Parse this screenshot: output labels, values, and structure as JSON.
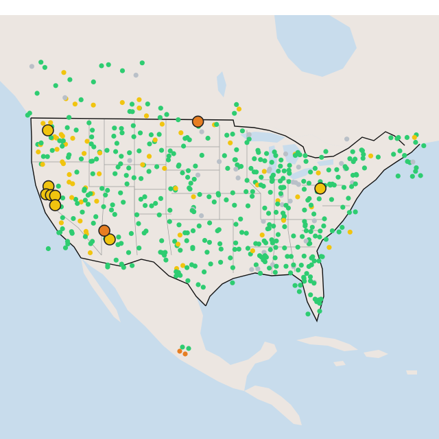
{
  "map": {
    "theme": "light-basemap",
    "colors": {
      "ocean": "#c8dcec",
      "land": "#ece6e1",
      "border": "#111111",
      "good": "#2ecc71",
      "moderate": "#f1c40f",
      "unhealthy_sensitive": "#e67e22",
      "no_data": "#b9c0c8"
    },
    "large_markers": [
      {
        "category": "moderate",
        "lon": -122.0,
        "lat": 47.3
      },
      {
        "category": "moderate",
        "lon": -121.9,
        "lat": 39.6
      },
      {
        "category": "moderate",
        "lon": -122.3,
        "lat": 38.5
      },
      {
        "category": "moderate",
        "lon": -121.5,
        "lat": 38.4
      },
      {
        "category": "moderate",
        "lon": -120.8,
        "lat": 38.3
      },
      {
        "category": "moderate",
        "lon": -120.8,
        "lat": 37.0
      },
      {
        "category": "moderate",
        "lon": -111.7,
        "lat": 32.3
      },
      {
        "category": "moderate",
        "lon": -76.6,
        "lat": 39.3
      },
      {
        "category": "unhealthy_sensitive",
        "lon": -112.6,
        "lat": 33.5
      },
      {
        "category": "unhealthy_sensitive",
        "lon": -97.0,
        "lat": 48.5
      }
    ]
  }
}
